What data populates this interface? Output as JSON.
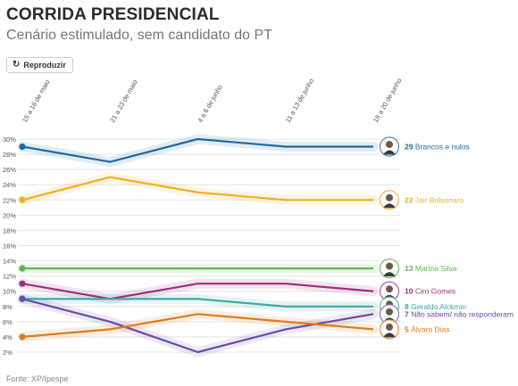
{
  "header": {
    "title": "CORRIDA PRESIDENCIAL",
    "subtitle": "Cenário estimulado, sem candidato do PT"
  },
  "controls": {
    "replay_label": "Reproduzir",
    "replay_icon": "replay-icon"
  },
  "footer": {
    "source": "Fonte: XP/Ipespe"
  },
  "chart_data": {
    "type": "line",
    "x": [
      "15 a 18 de maio",
      "21 a 23 de maio",
      "4 a 6 de junho",
      "11 a 13 de junho",
      "18 a 20 de junho"
    ],
    "y_ticks": [
      "2%",
      "4%",
      "6%",
      "8%",
      "10%",
      "12%",
      "14%",
      "16%",
      "18%",
      "20%",
      "22%",
      "24%",
      "26%",
      "28%",
      "30%"
    ],
    "ylim": [
      1,
      31
    ],
    "grid": true,
    "series": [
      {
        "name": "Brancos e nulos",
        "color": "#1f6aa5",
        "values": [
          29,
          27,
          30,
          29,
          29
        ],
        "end_value": "29",
        "label_y": 29
      },
      {
        "name": "Jair Bolsonaro",
        "color": "#f2b01e",
        "values": [
          22,
          25,
          23,
          22,
          22
        ],
        "end_value": "22",
        "label_y": 22
      },
      {
        "name": "Marina Silva",
        "color": "#5fb84a",
        "values": [
          13,
          13,
          13,
          13,
          13
        ],
        "end_value": "13",
        "label_y": 13
      },
      {
        "name": "Ciro Gomes",
        "color": "#9c2f7e",
        "values": [
          11,
          9,
          11,
          11,
          10
        ],
        "end_value": "10",
        "label_y": 10
      },
      {
        "name": "Geraldo Alckmin",
        "color": "#39a8a0",
        "values": [
          9,
          9,
          9,
          8,
          8
        ],
        "end_value": "8",
        "label_y": 8
      },
      {
        "name": "Não sabem/ não responderam",
        "color": "#6a4aa8",
        "values": [
          9,
          6,
          2,
          5,
          7
        ],
        "end_value": "7",
        "label_y": 7
      },
      {
        "name": "Álvaro Dias",
        "color": "#e07b1a",
        "values": [
          4,
          5,
          7,
          6,
          5
        ],
        "end_value": "5",
        "label_y": 5
      }
    ]
  }
}
